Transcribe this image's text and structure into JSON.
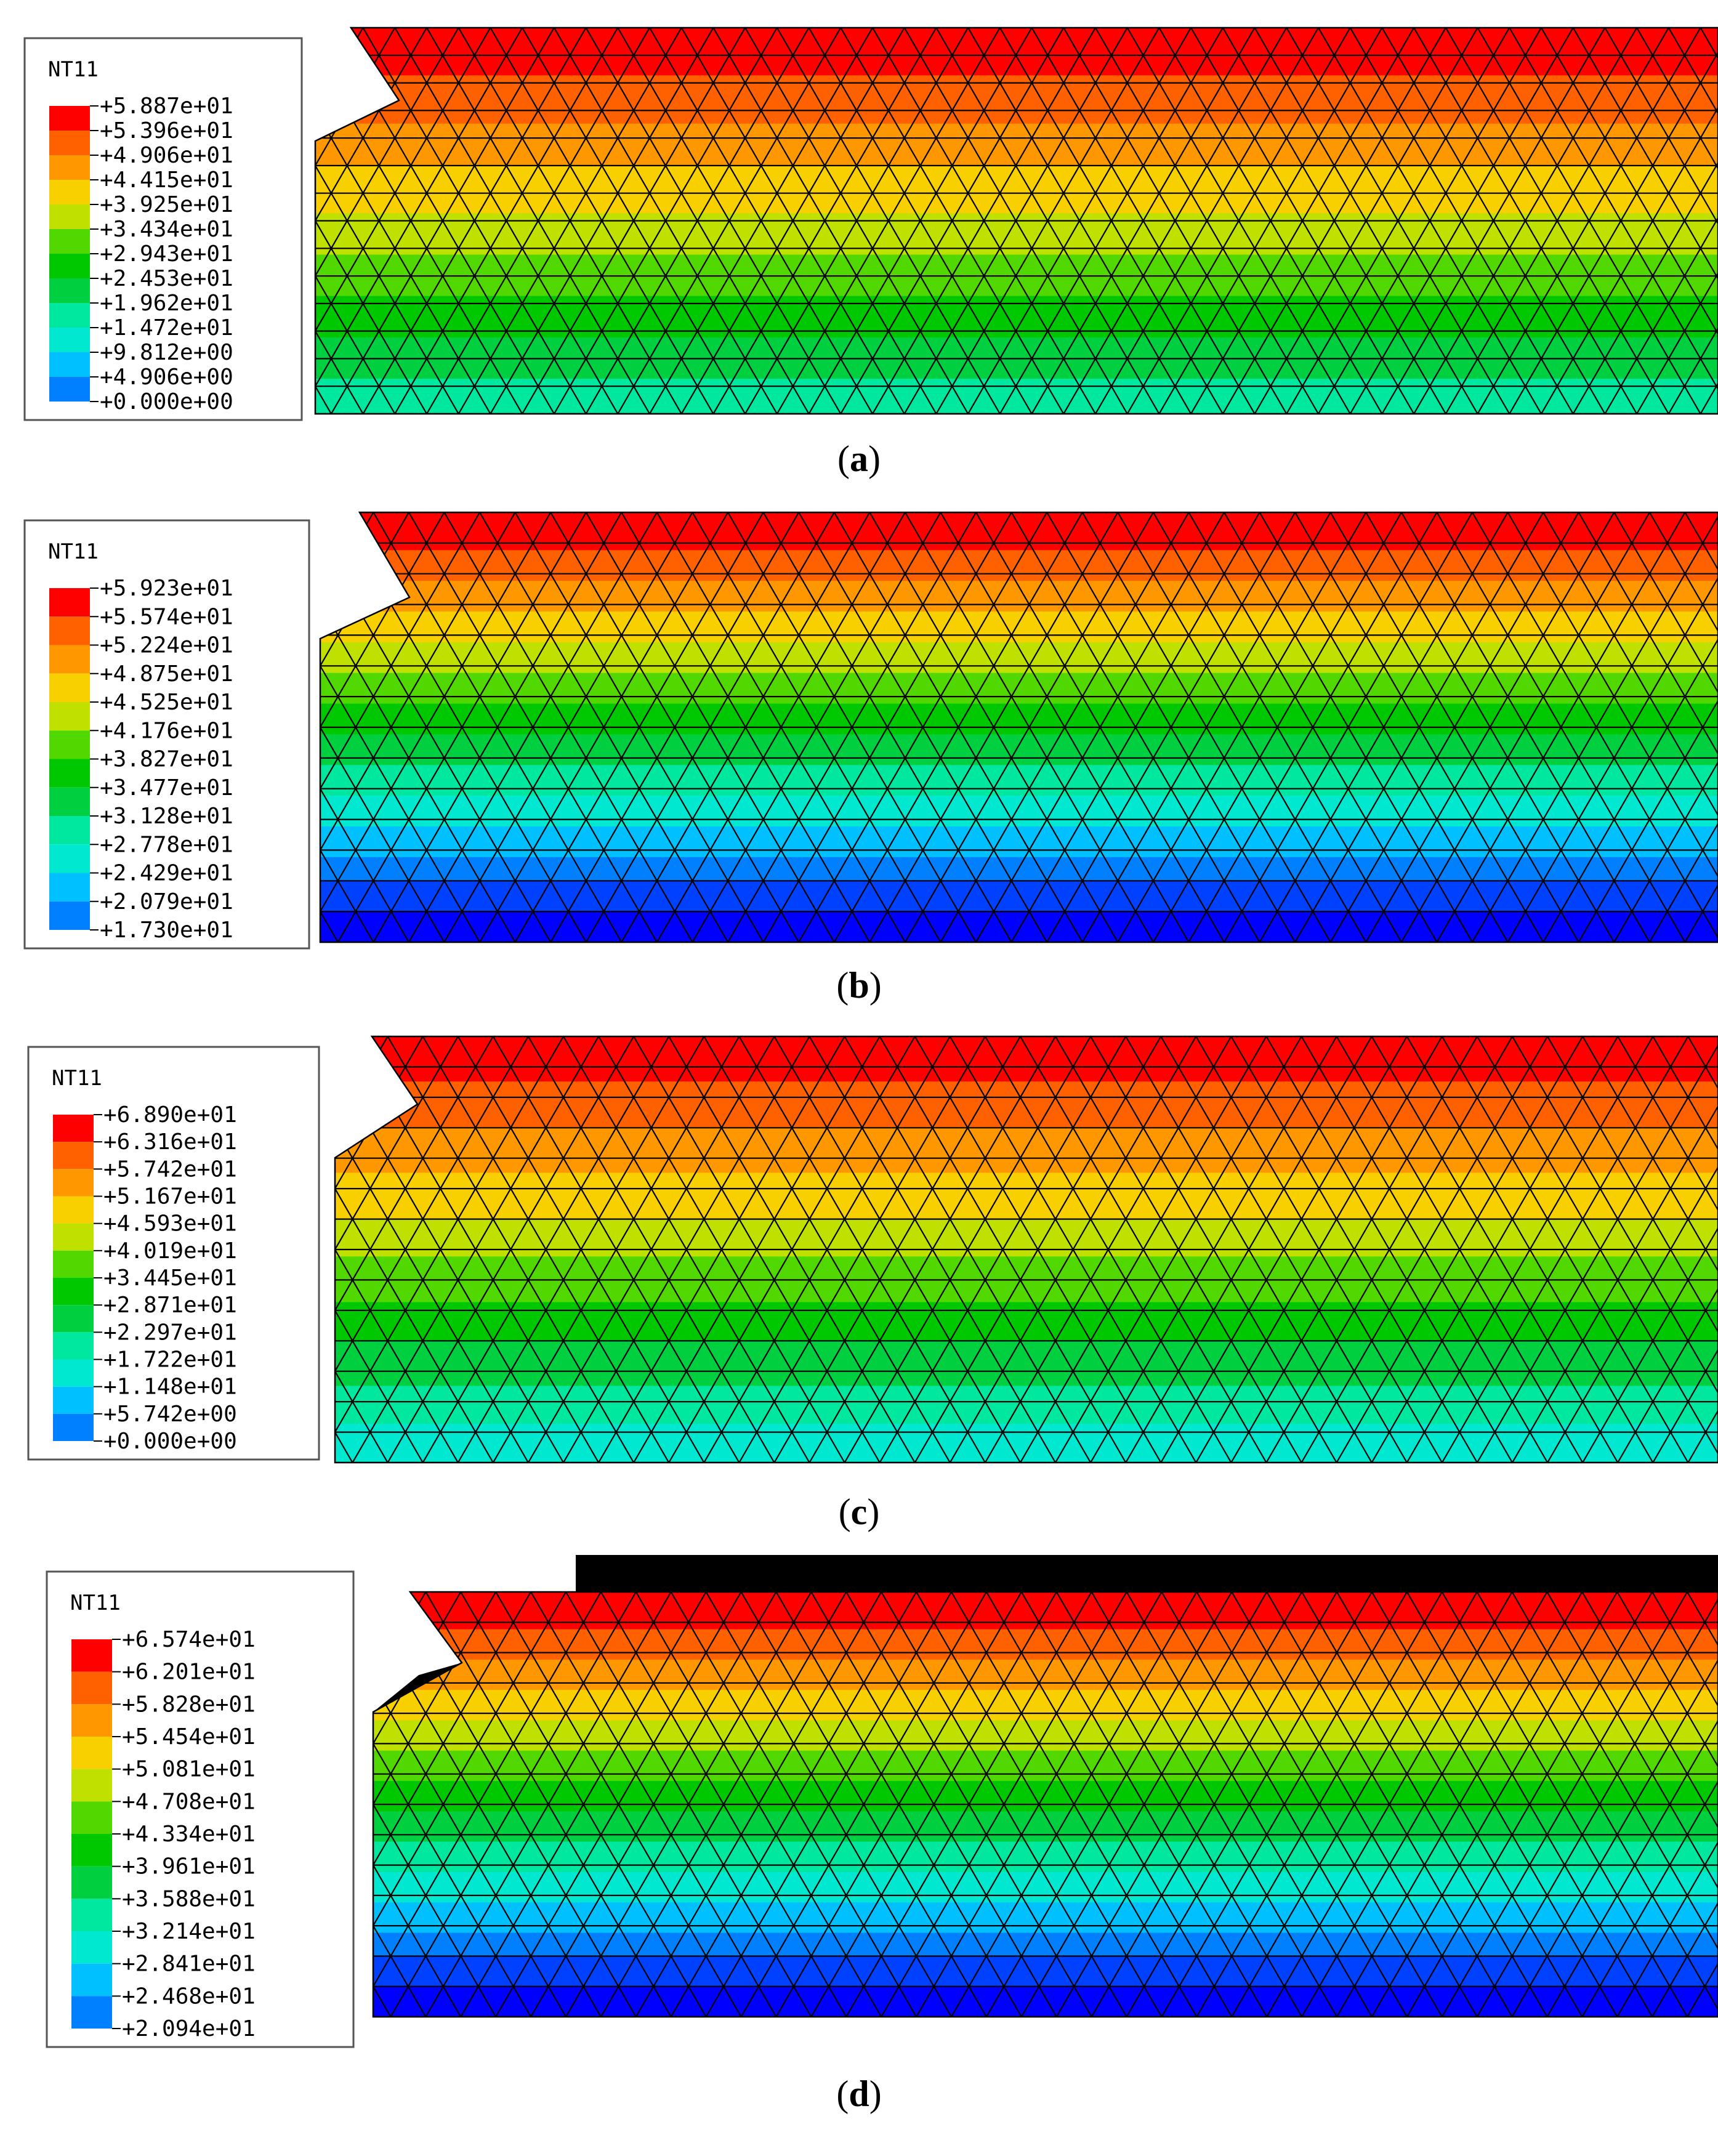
{
  "figure": {
    "variable_name": "NT11",
    "color_scale": [
      "#0000ff",
      "#0040ff",
      "#0080ff",
      "#00c0ff",
      "#00e8d0",
      "#00e8a0",
      "#00d040",
      "#00c800",
      "#50d800",
      "#c0e000",
      "#f8d000",
      "#ff9800",
      "#ff6000",
      "#ff0000"
    ],
    "mesh_line_color": "#000000",
    "panels": [
      {
        "id": "a",
        "caption_open": "(",
        "caption_letter": "a",
        "caption_close": ")",
        "legend_values": [
          "+5.887e+01",
          "+5.396e+01",
          "+4.906e+01",
          "+4.415e+01",
          "+3.925e+01",
          "+3.434e+01",
          "+2.943e+01",
          "+2.453e+01",
          "+1.962e+01",
          "+1.472e+01",
          "+9.812e+00",
          "+4.906e+00",
          "+0.000e+00"
        ],
        "value_range": [
          0.0,
          58.87
        ],
        "top_value": 58.87,
        "bottom_value": 22.0,
        "black_top": false
      },
      {
        "id": "b",
        "caption_open": "(",
        "caption_letter": "b",
        "caption_close": ")",
        "legend_values": [
          "+5.923e+01",
          "+5.574e+01",
          "+5.224e+01",
          "+4.875e+01",
          "+4.525e+01",
          "+4.176e+01",
          "+3.827e+01",
          "+3.477e+01",
          "+3.128e+01",
          "+2.778e+01",
          "+2.429e+01",
          "+2.079e+01",
          "+1.730e+01"
        ],
        "value_range": [
          17.3,
          59.23
        ],
        "top_value": 59.23,
        "bottom_value": 17.3,
        "black_top": false
      },
      {
        "id": "c",
        "caption_open": "(",
        "caption_letter": "c",
        "caption_close": ")",
        "legend_values": [
          "+6.890e+01",
          "+6.316e+01",
          "+5.742e+01",
          "+5.167e+01",
          "+4.593e+01",
          "+4.019e+01",
          "+3.445e+01",
          "+2.871e+01",
          "+2.297e+01",
          "+1.722e+01",
          "+1.148e+01",
          "+5.742e+00",
          "+0.000e+00"
        ],
        "value_range": [
          0.0,
          68.9
        ],
        "top_value": 68.9,
        "bottom_value": 20.0,
        "black_top": false
      },
      {
        "id": "d",
        "caption_open": "(",
        "caption_letter": "d",
        "caption_close": ")",
        "legend_values": [
          "+6.574e+01",
          "+6.201e+01",
          "+5.828e+01",
          "+5.454e+01",
          "+5.081e+01",
          "+4.708e+01",
          "+4.334e+01",
          "+3.961e+01",
          "+3.588e+01",
          "+3.214e+01",
          "+2.841e+01",
          "+2.468e+01",
          "+2.094e+01"
        ],
        "value_range": [
          20.94,
          65.74
        ],
        "top_value": 65.74,
        "bottom_value": 20.94,
        "black_top": true
      }
    ]
  }
}
